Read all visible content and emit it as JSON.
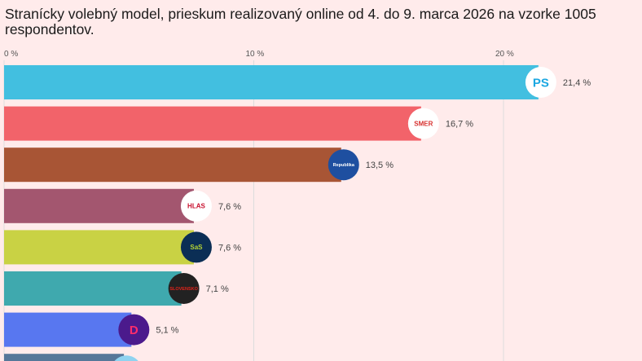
{
  "chart_data": {
    "type": "bar",
    "orientation": "horizontal",
    "title": "Stranícky volebný model, prieskum realizovaný online od 4. do 9. marca 2026 na vzorke 1005 respondentov.",
    "xlim": [
      0,
      25
    ],
    "ticks": [
      0,
      10,
      20
    ],
    "tick_labels": [
      "0 %",
      "10 %",
      "20 %"
    ],
    "grid": true,
    "categories": [
      "PS",
      "SMER",
      "Republika",
      "HLAS",
      "SaS",
      "Hnutie Slovensko",
      "Demokrati",
      ""
    ],
    "values": [
      21.4,
      16.7,
      13.5,
      7.6,
      7.6,
      7.1,
      5.1,
      4.8
    ],
    "value_labels": [
      "21,4 %",
      "16,7 %",
      "13,5 %",
      "7,6 %",
      "7,6 %",
      "7,1 %",
      "5,1 %",
      ""
    ],
    "colors": [
      "#42BFE0",
      "#F2636A",
      "#A85535",
      "#A3566F",
      "#C9D244",
      "#3FA9AE",
      "#5877F0",
      "#567799"
    ],
    "logos": [
      {
        "text": "PS",
        "bg": "#FFFFFF",
        "fg": "#1BA7E1"
      },
      {
        "text": "SMER",
        "bg": "#FFFFFF",
        "fg": "#D8312F"
      },
      {
        "text": "Republika",
        "bg": "#1E4FA0",
        "fg": "#FFFFFF"
      },
      {
        "text": "HLAS",
        "bg": "#FFFFFF",
        "fg": "#C8102E"
      },
      {
        "text": "SaS",
        "bg": "#0B2E55",
        "fg": "#B5D334"
      },
      {
        "text": "SLOVENSKO",
        "bg": "#222222",
        "fg": "#E2231A"
      },
      {
        "text": "D",
        "bg": "#4B1A8C",
        "fg": "#FF2D6B"
      },
      {
        "text": "",
        "bg": "#8FD3F0",
        "fg": "#FFFFFF"
      }
    ]
  }
}
